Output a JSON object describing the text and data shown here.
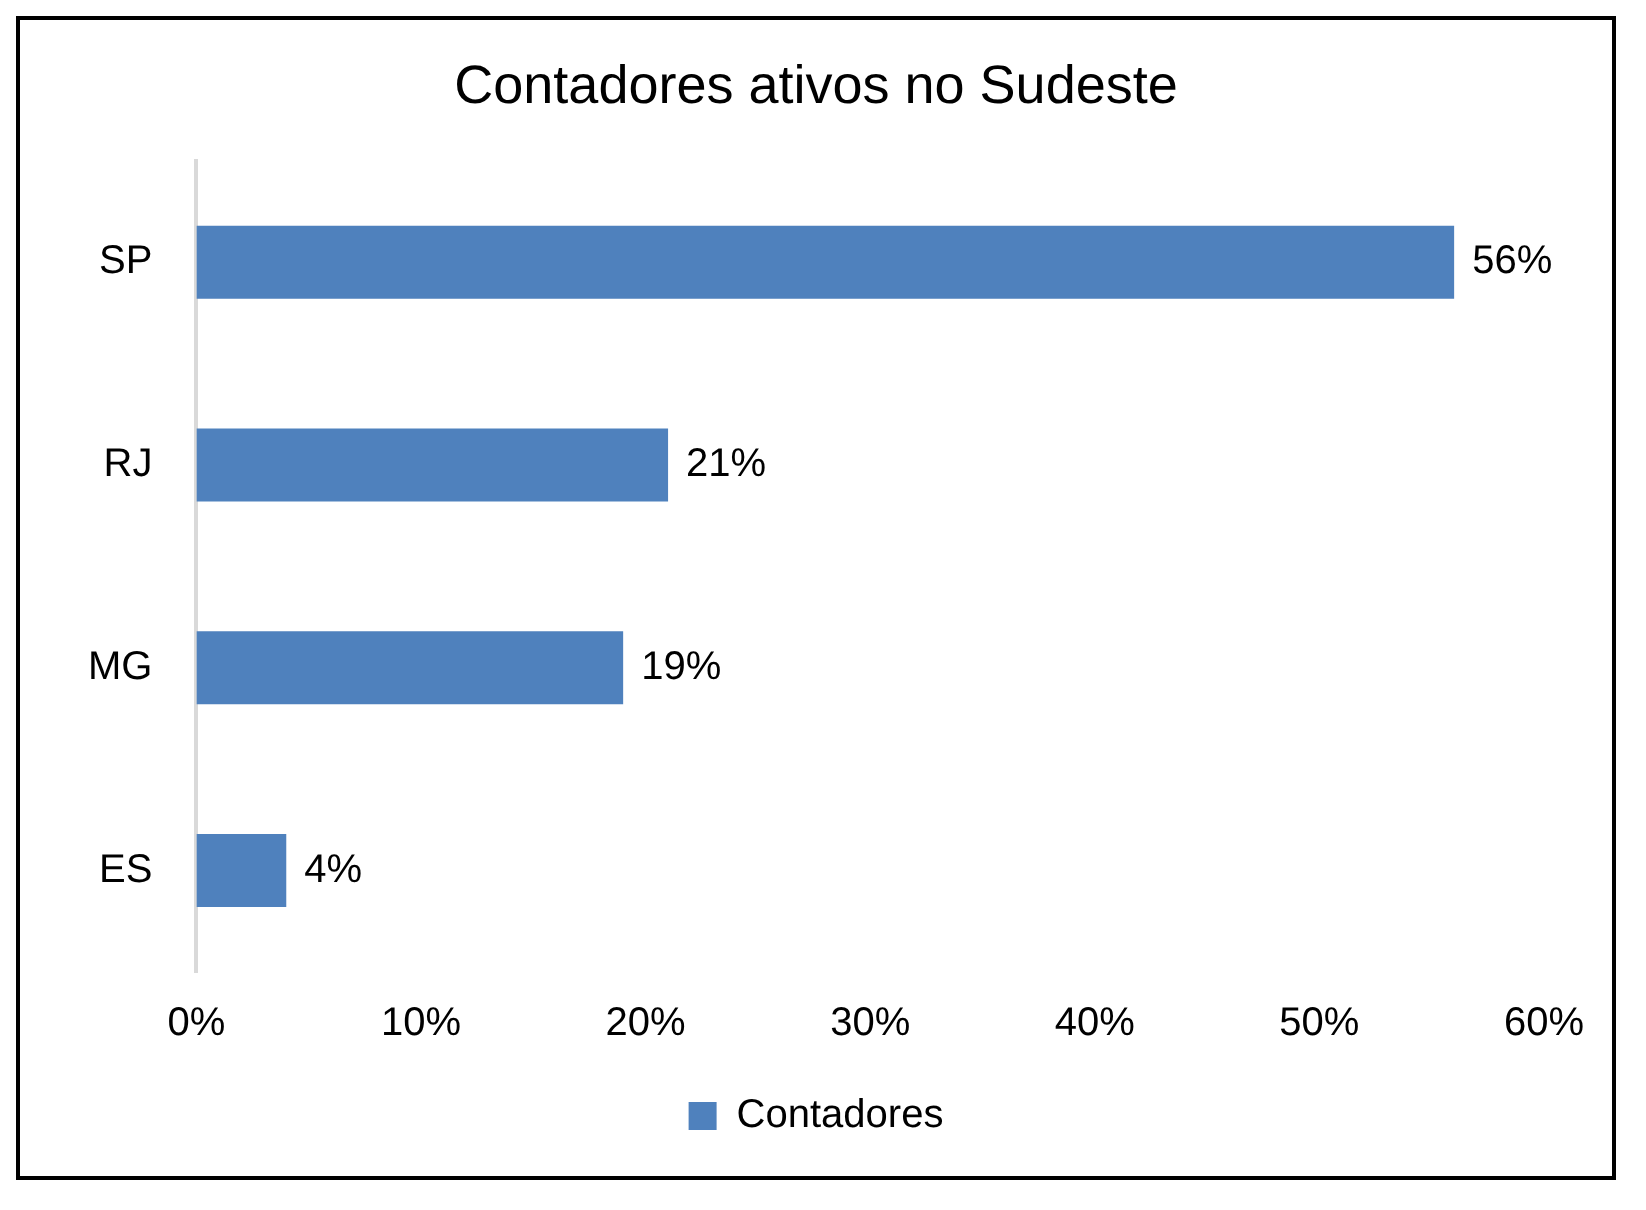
{
  "chart_data": {
    "type": "bar",
    "orientation": "horizontal",
    "title": "Contadores ativos no Sudeste",
    "categories": [
      "SP",
      "RJ",
      "MG",
      "ES"
    ],
    "series": [
      {
        "name": "Contadores",
        "color": "#4f81bd",
        "values": [
          56,
          21,
          19,
          4
        ],
        "value_labels": [
          "56%",
          "21%",
          "19%",
          "4%"
        ]
      }
    ],
    "xlim": [
      0,
      60
    ],
    "xticks": [
      {
        "value": 0,
        "label": "0%"
      },
      {
        "value": 10,
        "label": "10%"
      },
      {
        "value": 20,
        "label": "20%"
      },
      {
        "value": 30,
        "label": "30%"
      },
      {
        "value": 40,
        "label": "40%"
      },
      {
        "value": 50,
        "label": "50%"
      },
      {
        "value": 60,
        "label": "60%"
      }
    ],
    "grid": false,
    "legend": "bottom"
  }
}
